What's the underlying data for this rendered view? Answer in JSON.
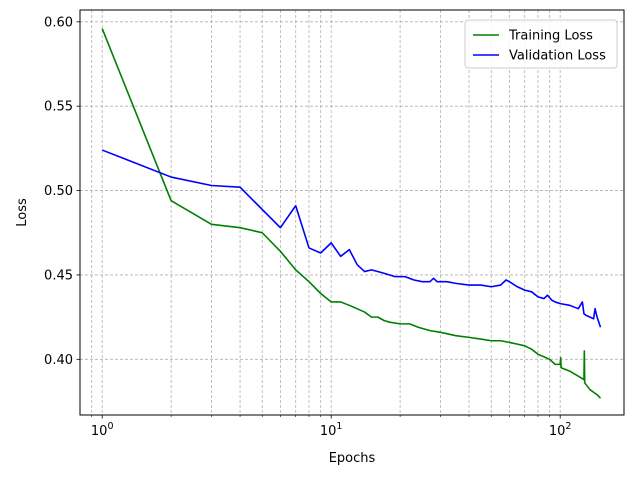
{
  "chart_data": {
    "type": "line",
    "xlabel": "Epochs",
    "ylabel": "Loss",
    "xscale": "log",
    "xlim": [
      0.8,
      190
    ],
    "ylim": [
      0.367,
      0.607
    ],
    "grid": "on (major and minor, dashed)",
    "legend_position": "top-right",
    "x_tick_labels": [
      "10^0",
      "10^1",
      "10^2"
    ],
    "y_tick_labels": [
      "0.40",
      "0.45",
      "0.50",
      "0.55",
      "0.60"
    ],
    "series": [
      {
        "name": "Training Loss",
        "color": "#008000",
        "points": [
          [
            1,
            0.596
          ],
          [
            2,
            0.494
          ],
          [
            3,
            0.48
          ],
          [
            4,
            0.478
          ],
          [
            5,
            0.475
          ],
          [
            6,
            0.464
          ],
          [
            7,
            0.453
          ],
          [
            8,
            0.446
          ],
          [
            9,
            0.439
          ],
          [
            10,
            0.434
          ],
          [
            11,
            0.434
          ],
          [
            12,
            0.432
          ],
          [
            14,
            0.428
          ],
          [
            15,
            0.425
          ],
          [
            16,
            0.425
          ],
          [
            17,
            0.423
          ],
          [
            18,
            0.422
          ],
          [
            20,
            0.421
          ],
          [
            22,
            0.421
          ],
          [
            24,
            0.419
          ],
          [
            27,
            0.417
          ],
          [
            30,
            0.416
          ],
          [
            35,
            0.414
          ],
          [
            40,
            0.413
          ],
          [
            45,
            0.412
          ],
          [
            50,
            0.411
          ],
          [
            55,
            0.411
          ],
          [
            60,
            0.41
          ],
          [
            65,
            0.409
          ],
          [
            70,
            0.408
          ],
          [
            75,
            0.406
          ],
          [
            80,
            0.403
          ],
          [
            90,
            0.4
          ],
          [
            95,
            0.397
          ],
          [
            100,
            0.397
          ],
          [
            100.5,
            0.401
          ],
          [
            101,
            0.395
          ],
          [
            110,
            0.393
          ],
          [
            120,
            0.39
          ],
          [
            127,
            0.388
          ],
          [
            127.5,
            0.405
          ],
          [
            128,
            0.386
          ],
          [
            135,
            0.382
          ],
          [
            145,
            0.379
          ],
          [
            150,
            0.377
          ]
        ]
      },
      {
        "name": "Validation Loss",
        "color": "#0000ff",
        "points": [
          [
            1,
            0.524
          ],
          [
            2,
            0.508
          ],
          [
            3,
            0.503
          ],
          [
            4,
            0.502
          ],
          [
            6,
            0.478
          ],
          [
            7,
            0.491
          ],
          [
            8,
            0.466
          ],
          [
            9,
            0.463
          ],
          [
            10,
            0.469
          ],
          [
            11,
            0.461
          ],
          [
            12,
            0.465
          ],
          [
            13,
            0.456
          ],
          [
            14,
            0.452
          ],
          [
            15,
            0.453
          ],
          [
            17,
            0.451
          ],
          [
            19,
            0.449
          ],
          [
            21,
            0.449
          ],
          [
            23,
            0.447
          ],
          [
            25,
            0.446
          ],
          [
            27,
            0.446
          ],
          [
            28,
            0.448
          ],
          [
            29,
            0.446
          ],
          [
            32,
            0.446
          ],
          [
            35,
            0.445
          ],
          [
            40,
            0.444
          ],
          [
            45,
            0.444
          ],
          [
            50,
            0.443
          ],
          [
            55,
            0.444
          ],
          [
            58,
            0.447
          ],
          [
            60,
            0.446
          ],
          [
            65,
            0.443
          ],
          [
            70,
            0.441
          ],
          [
            75,
            0.44
          ],
          [
            80,
            0.437
          ],
          [
            85,
            0.436
          ],
          [
            88,
            0.438
          ],
          [
            92,
            0.435
          ],
          [
            95,
            0.434
          ],
          [
            100,
            0.433
          ],
          [
            110,
            0.432
          ],
          [
            120,
            0.43
          ],
          [
            125,
            0.434
          ],
          [
            127,
            0.427
          ],
          [
            130,
            0.426
          ],
          [
            135,
            0.425
          ],
          [
            140,
            0.424
          ],
          [
            142,
            0.43
          ],
          [
            145,
            0.425
          ],
          [
            150,
            0.419
          ]
        ]
      }
    ]
  }
}
